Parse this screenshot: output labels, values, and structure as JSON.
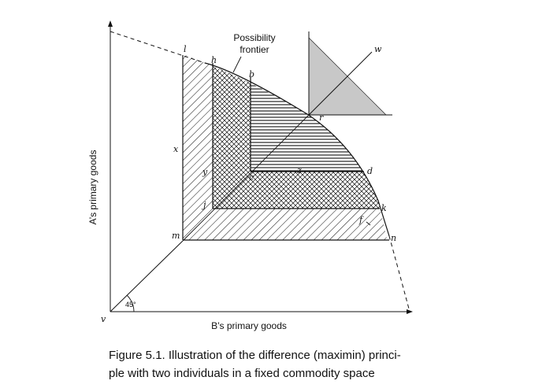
{
  "figure": {
    "y_axis_label": "A’s primary goods",
    "x_axis_label": "B’s primary goods",
    "frontier_label_line1": "Possibility",
    "frontier_label_line2": "frontier",
    "angle_label": "45°",
    "points": {
      "origin": "v",
      "l": "l",
      "h": "h",
      "b": "b",
      "r": "r",
      "d": "d",
      "k": "k",
      "f": "f",
      "n": "n",
      "m": "m",
      "j": "j",
      "c": "c",
      "x": "x",
      "y": "y",
      "z": "z",
      "w": "w"
    }
  },
  "caption": {
    "line1": "Figure 5.1. Illustration of the difference (maximin) princi-",
    "line2": "ple with two individuals in a fixed commodity space"
  }
}
